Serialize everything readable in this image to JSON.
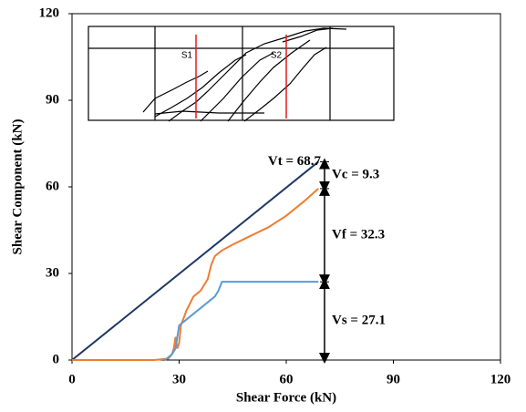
{
  "chart_data": {
    "type": "line",
    "xlabel": "Shear Force (kN)",
    "ylabel": "Shear Component (kN)",
    "xlim": [
      0,
      120
    ],
    "xticks": [
      0,
      30,
      60,
      90,
      120
    ],
    "ylim": [
      0,
      120
    ],
    "yticks": [
      0,
      30,
      60,
      90,
      120
    ],
    "grid": false,
    "series": [
      {
        "color": "#1f3864",
        "x": [
          0,
          69
        ],
        "values": [
          0,
          68.7
        ]
      },
      {
        "color": "#ed7d31",
        "x": [
          0,
          23,
          27,
          28,
          28.5,
          29,
          29.5,
          30,
          30.5,
          32,
          34,
          36,
          38,
          39,
          40,
          42,
          45,
          50,
          55,
          60,
          65,
          69
        ],
        "values": [
          0,
          0,
          0.5,
          2,
          4,
          8,
          4,
          6,
          12,
          17,
          22,
          24,
          28,
          33,
          36,
          38,
          40,
          43,
          46,
          50,
          55,
          59.4
        ]
      },
      {
        "color": "#5b9bd5",
        "x": [
          26,
          28,
          29,
          30,
          32,
          35,
          38,
          40,
          41,
          42,
          69
        ],
        "values": [
          0,
          2,
          4,
          12,
          14,
          17,
          20,
          22,
          24,
          27.1,
          27.1
        ]
      }
    ],
    "components": [
      {
        "label": "Vs = 27.1",
        "value": 27.1
      },
      {
        "label": "Vf = 32.3",
        "value": 32.3
      },
      {
        "label": "Vc = 9.3",
        "value": 9.3
      }
    ],
    "total": {
      "label": "Vt = 68.7",
      "value": 68.7
    },
    "inset_labels": [
      "S1",
      "S2"
    ]
  }
}
